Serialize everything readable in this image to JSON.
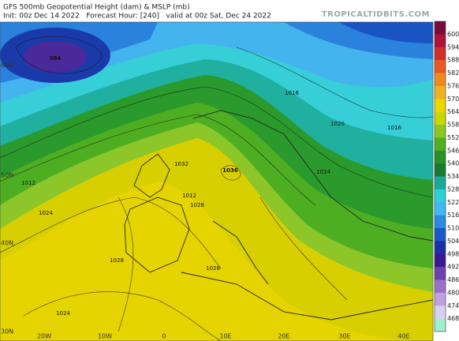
{
  "header": {
    "title": "GFS 500mb Geopotential Height (dam) & MSLP (mb)",
    "subtitle": "Init: 00z Dec 14 2022   Forecast Hour: [240]   valid at 00z Sat, Dec 24 2022",
    "brand": "TROPICALTIDBITS.COM"
  },
  "colorbar": {
    "labels": [
      "600",
      "594",
      "588",
      "582",
      "576",
      "570",
      "564",
      "558",
      "552",
      "546",
      "540",
      "534",
      "528",
      "522",
      "516",
      "510",
      "504",
      "498",
      "492",
      "486",
      "480",
      "474",
      "468"
    ]
  },
  "map": {
    "lat_labels": [
      "60N",
      "50N",
      "40N",
      "30N"
    ],
    "lon_labels": [
      "20W",
      "10W",
      "0",
      "10E",
      "20E",
      "30E",
      "40E"
    ],
    "pressure_labels": [
      "984",
      "1036",
      "1012",
      "1012",
      "1016",
      "1020",
      "1024",
      "1024",
      "1028",
      "1028",
      "1028",
      "1024",
      "1016",
      "1032"
    ]
  }
}
